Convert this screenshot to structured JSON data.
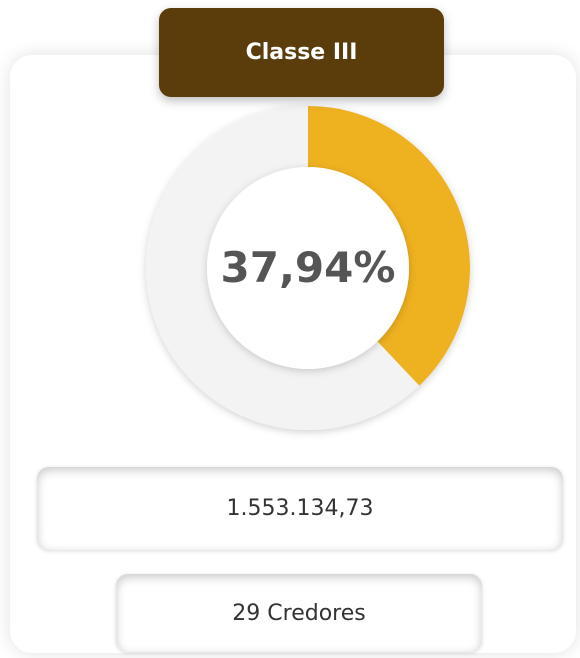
{
  "chart_data": {
    "type": "donut",
    "title": "Classe III",
    "values": [
      37.94
    ],
    "value_labels": [
      "37,94%"
    ],
    "color": "#eeb11f"
  },
  "amount": "1.553.134,73",
  "creditors": "29 Credores"
}
